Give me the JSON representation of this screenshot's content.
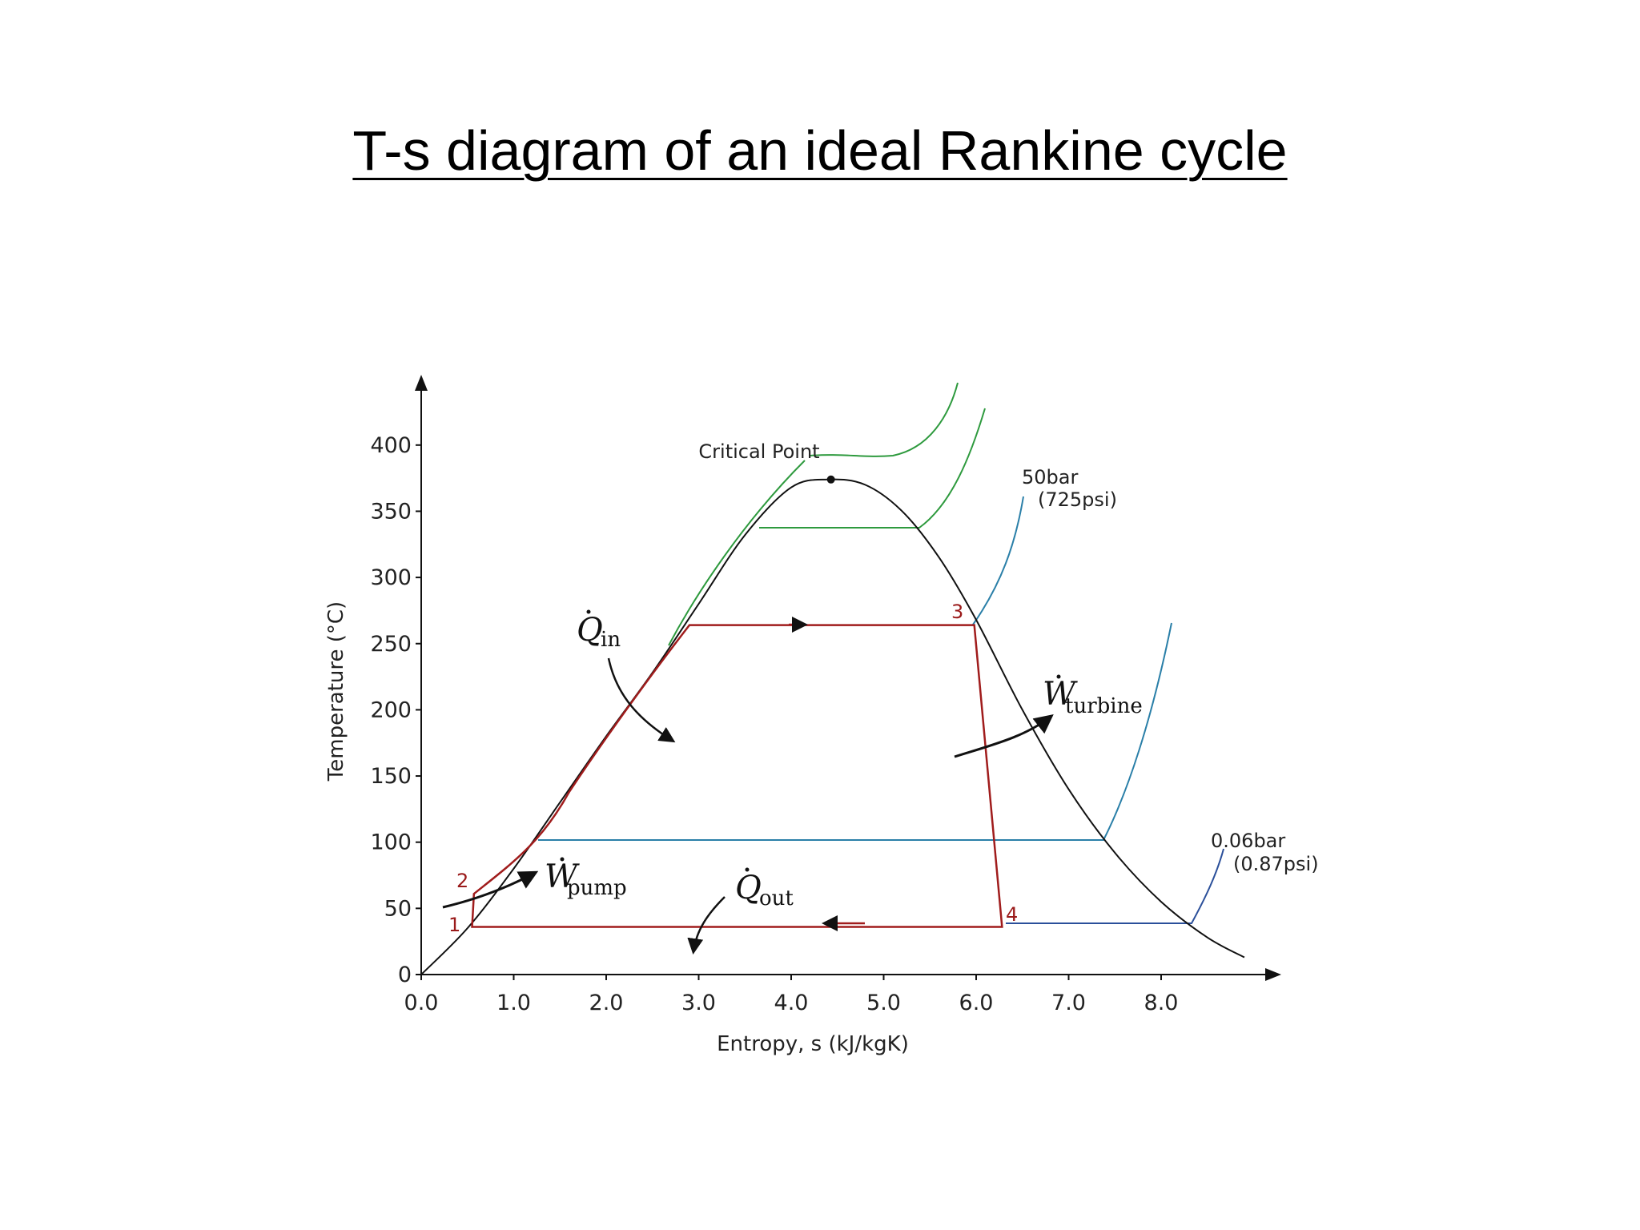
{
  "title": "T-s diagram of an ideal Rankine cycle",
  "chart_data": {
    "type": "line",
    "title": "T-s diagram of an ideal Rankine cycle",
    "xlabel": "Entropy, s  (kJ/kgK)",
    "ylabel": "Temperature (°C)",
    "xlim": [
      0,
      9.3
    ],
    "ylim": [
      0,
      450
    ],
    "x_ticks": [
      "0.0",
      "1.0",
      "2.0",
      "3.0",
      "4.0",
      "5.0",
      "6.0",
      "7.0",
      "8.0"
    ],
    "y_ticks": [
      "0",
      "50",
      "100",
      "150",
      "200",
      "250",
      "300",
      "350",
      "400"
    ],
    "grid": false,
    "colors": {
      "cycle": "#a01c1c",
      "dome": "#111111",
      "high_pressure": "#2e9a3e",
      "low_pressure": "#2a7fa8",
      "isobar_low": "#2a4f9a"
    },
    "saturation_dome": {
      "x": [
        0,
        0.5,
        1.0,
        1.5,
        2.0,
        2.5,
        3.0,
        3.5,
        4.0,
        4.4,
        4.8,
        5.2,
        5.6,
        6.0,
        6.5,
        7.0,
        7.5,
        8.0,
        8.5,
        8.9
      ],
      "y": [
        0,
        35,
        80,
        130,
        180,
        228,
        280,
        332,
        368,
        374,
        370,
        350,
        315,
        268,
        200,
        140,
        92,
        55,
        28,
        13
      ]
    },
    "critical_point": {
      "x": 4.43,
      "y": 374,
      "label": "Critical Point"
    },
    "cycle": {
      "states": [
        {
          "label": "1",
          "s": 0.55,
          "T": 36
        },
        {
          "label": "2",
          "s": 0.57,
          "T": 61
        },
        {
          "label": "3",
          "s": 5.98,
          "T": 264
        },
        {
          "label": "4",
          "s": 6.28,
          "T": 36
        }
      ]
    },
    "isobars": [
      {
        "name": "50bar",
        "sub": "(725psi)"
      },
      {
        "name": "0.06bar",
        "sub": "(0.87psi)"
      }
    ],
    "annotations": {
      "q_in": {
        "symbol": "Q",
        "sub": "in"
      },
      "w_turbine": {
        "symbol": "W",
        "sub": "turbine"
      },
      "w_pump": {
        "symbol": "W",
        "sub": "pump"
      },
      "q_out": {
        "symbol": "Q",
        "sub": "out"
      }
    }
  }
}
